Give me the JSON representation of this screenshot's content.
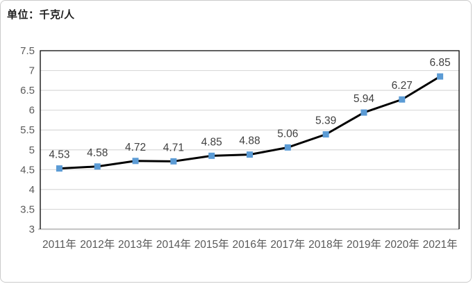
{
  "chart_data": {
    "type": "line",
    "unit": "单位：千克/人",
    "categories": [
      "2011年",
      "2012年",
      "2013年",
      "2014年",
      "2015年",
      "2016年",
      "2017年",
      "2018年",
      "2019年",
      "2020年",
      "2021年"
    ],
    "values": [
      4.53,
      4.58,
      4.72,
      4.71,
      4.85,
      4.88,
      5.06,
      5.39,
      5.94,
      6.27,
      6.85
    ],
    "data_labels": [
      "4.53",
      "4.58",
      "4.72",
      "4.71",
      "4.85",
      "4.88",
      "5.06",
      "5.39",
      "5.94",
      "6.27",
      "6.85"
    ],
    "ylim": [
      3,
      7.5
    ],
    "ytick_step": 0.5,
    "yticks": [
      "3",
      "3.5",
      "4",
      "4.5",
      "5",
      "5.5",
      "6",
      "6.5",
      "7",
      "7.5"
    ],
    "grid": true,
    "legend": "none",
    "xlabel": "",
    "ylabel": "",
    "colors": {
      "line": "#000000",
      "marker": "#5B9BD5",
      "gridline": "#D9D9D9",
      "plot_border": "#000000",
      "bottom_axis": "#C7C7C7",
      "y_tick_label": "#595959",
      "x_tick_label": "#595959",
      "data_label": "#404040"
    }
  }
}
